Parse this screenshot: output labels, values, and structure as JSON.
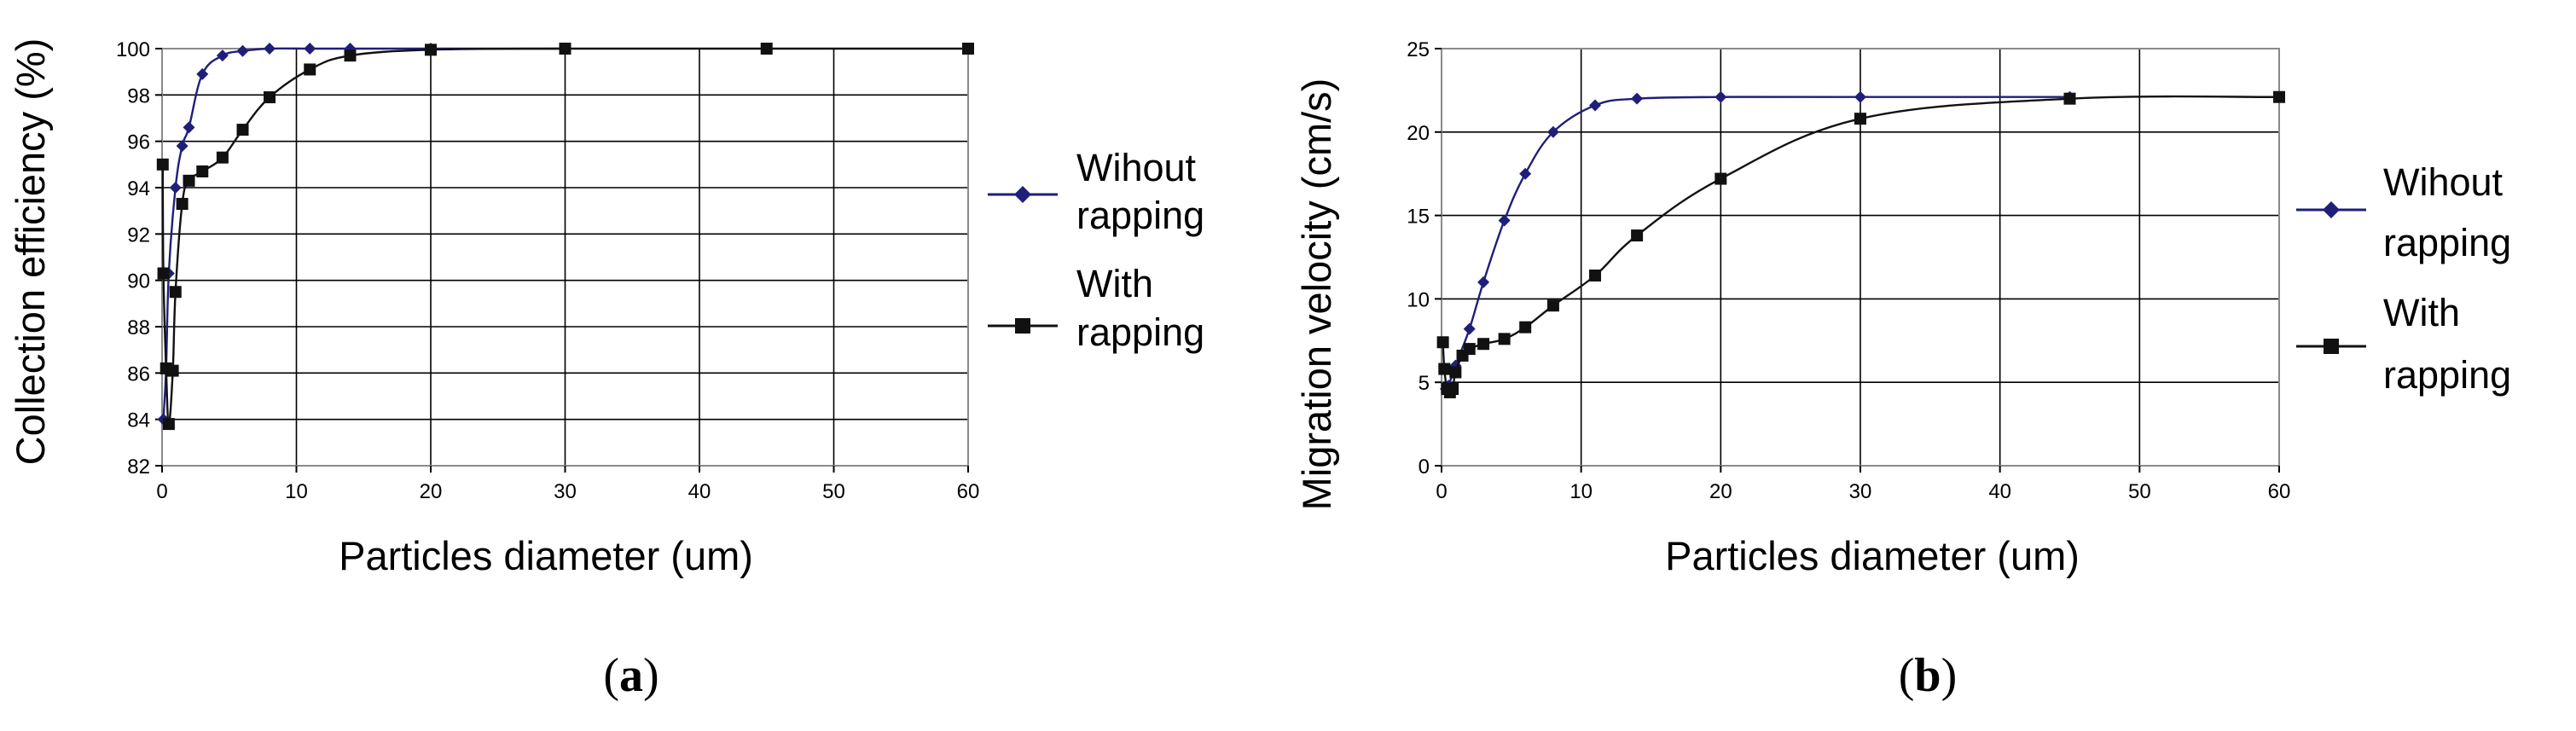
{
  "chart_data": [
    {
      "type": "line",
      "panel_label": {
        "open": "(",
        "letter": "a",
        "close": ")"
      },
      "xlabel": "Particles diameter (um)",
      "ylabel": "Collection efficiency (%)",
      "xlim": [
        0,
        60
      ],
      "ylim": [
        82,
        100
      ],
      "xticks": [
        0,
        10,
        20,
        30,
        40,
        50,
        60
      ],
      "yticks": [
        82,
        84,
        86,
        88,
        90,
        92,
        94,
        96,
        98,
        100
      ],
      "grid": true,
      "legend_position": "right",
      "series": [
        {
          "name": "Wihout rapping",
          "legend_lines": [
            "Wihout",
            "rapping"
          ],
          "marker": "diamond",
          "color": "#1f1f7a",
          "x": [
            0.1,
            0.3,
            0.5,
            1,
            1.5,
            2,
            3,
            4.5,
            6,
            8,
            11,
            14,
            20,
            30
          ],
          "y": [
            84,
            86.2,
            90.3,
            94,
            95.8,
            96.6,
            98.9,
            99.7,
            99.9,
            100,
            100,
            100,
            100,
            100
          ]
        },
        {
          "name": "With rapping",
          "legend_lines": [
            "With",
            "rapping"
          ],
          "marker": "square",
          "color": "#111111",
          "x": [
            0.05,
            0.1,
            0.3,
            0.5,
            0.8,
            1,
            1.5,
            2,
            3,
            4.5,
            6,
            8,
            11,
            14,
            20,
            30,
            45,
            60
          ],
          "y": [
            95,
            90.3,
            86.2,
            83.8,
            86.1,
            89.5,
            93.3,
            94.3,
            94.7,
            95.3,
            96.5,
            97.9,
            99.1,
            99.7,
            99.95,
            100,
            100,
            100
          ]
        }
      ]
    },
    {
      "type": "line",
      "panel_label": {
        "open": "(",
        "letter": "b",
        "close": ")"
      },
      "xlabel": "Particles diameter (um)",
      "ylabel": "Migration velocity (cm/s)",
      "xlim": [
        0,
        60
      ],
      "ylim": [
        0,
        25
      ],
      "xticks": [
        0,
        10,
        20,
        30,
        40,
        50,
        60
      ],
      "yticks": [
        0,
        5,
        10,
        15,
        20,
        25
      ],
      "grid": true,
      "legend_position": "right",
      "series": [
        {
          "name": "Wihout rapping",
          "legend_lines": [
            "Wihout",
            "rapping"
          ],
          "marker": "diamond",
          "color": "#1f1f7a",
          "x": [
            0.3,
            0.5,
            1,
            2,
            3,
            4.5,
            6,
            8,
            11,
            14,
            20,
            30,
            45
          ],
          "y": [
            4.6,
            4.8,
            6,
            8.2,
            11,
            14.7,
            17.5,
            20,
            21.6,
            22,
            22.1,
            22.1,
            22.1
          ]
        },
        {
          "name": "With rapping",
          "legend_lines": [
            "With",
            "rapping"
          ],
          "marker": "square",
          "color": "#111111",
          "x": [
            0.1,
            0.2,
            0.4,
            0.6,
            0.8,
            1,
            1.5,
            2,
            3,
            4.5,
            6,
            8,
            11,
            14,
            20,
            30,
            45,
            60
          ],
          "y": [
            7.4,
            5.8,
            4.6,
            4.4,
            4.6,
            5.6,
            6.6,
            7,
            7.3,
            7.6,
            8.3,
            9.6,
            11.4,
            13.8,
            17.2,
            20.8,
            22,
            22.1
          ]
        }
      ]
    }
  ]
}
